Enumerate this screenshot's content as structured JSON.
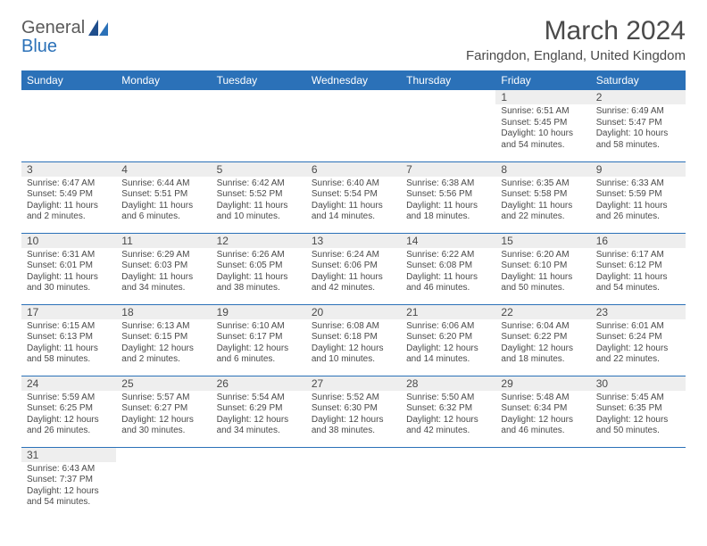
{
  "colors": {
    "header_bg": "#2b71b8",
    "header_text": "#ffffff",
    "day_bar_bg": "#eeeeee",
    "cell_border": "#2b71b8",
    "body_text": "#4a4a4a",
    "page_bg": "#ffffff"
  },
  "typography": {
    "title_fontsize": 30,
    "location_fontsize": 15,
    "header_fontsize": 12,
    "daynum_fontsize": 12,
    "body_fontsize": 10,
    "font_family": "Arial"
  },
  "logo": {
    "text1": "General",
    "text2": "Blue"
  },
  "title": "March 2024",
  "location": "Faringdon, England, United Kingdom",
  "weekdays": [
    "Sunday",
    "Monday",
    "Tuesday",
    "Wednesday",
    "Thursday",
    "Friday",
    "Saturday"
  ],
  "calendar_type": "table",
  "columns": 7,
  "weeks": [
    [
      null,
      null,
      null,
      null,
      null,
      {
        "n": "1",
        "sr": "Sunrise: 6:51 AM",
        "ss": "Sunset: 5:45 PM",
        "d1": "Daylight: 10 hours",
        "d2": "and 54 minutes."
      },
      {
        "n": "2",
        "sr": "Sunrise: 6:49 AM",
        "ss": "Sunset: 5:47 PM",
        "d1": "Daylight: 10 hours",
        "d2": "and 58 minutes."
      }
    ],
    [
      {
        "n": "3",
        "sr": "Sunrise: 6:47 AM",
        "ss": "Sunset: 5:49 PM",
        "d1": "Daylight: 11 hours",
        "d2": "and 2 minutes."
      },
      {
        "n": "4",
        "sr": "Sunrise: 6:44 AM",
        "ss": "Sunset: 5:51 PM",
        "d1": "Daylight: 11 hours",
        "d2": "and 6 minutes."
      },
      {
        "n": "5",
        "sr": "Sunrise: 6:42 AM",
        "ss": "Sunset: 5:52 PM",
        "d1": "Daylight: 11 hours",
        "d2": "and 10 minutes."
      },
      {
        "n": "6",
        "sr": "Sunrise: 6:40 AM",
        "ss": "Sunset: 5:54 PM",
        "d1": "Daylight: 11 hours",
        "d2": "and 14 minutes."
      },
      {
        "n": "7",
        "sr": "Sunrise: 6:38 AM",
        "ss": "Sunset: 5:56 PM",
        "d1": "Daylight: 11 hours",
        "d2": "and 18 minutes."
      },
      {
        "n": "8",
        "sr": "Sunrise: 6:35 AM",
        "ss": "Sunset: 5:58 PM",
        "d1": "Daylight: 11 hours",
        "d2": "and 22 minutes."
      },
      {
        "n": "9",
        "sr": "Sunrise: 6:33 AM",
        "ss": "Sunset: 5:59 PM",
        "d1": "Daylight: 11 hours",
        "d2": "and 26 minutes."
      }
    ],
    [
      {
        "n": "10",
        "sr": "Sunrise: 6:31 AM",
        "ss": "Sunset: 6:01 PM",
        "d1": "Daylight: 11 hours",
        "d2": "and 30 minutes."
      },
      {
        "n": "11",
        "sr": "Sunrise: 6:29 AM",
        "ss": "Sunset: 6:03 PM",
        "d1": "Daylight: 11 hours",
        "d2": "and 34 minutes."
      },
      {
        "n": "12",
        "sr": "Sunrise: 6:26 AM",
        "ss": "Sunset: 6:05 PM",
        "d1": "Daylight: 11 hours",
        "d2": "and 38 minutes."
      },
      {
        "n": "13",
        "sr": "Sunrise: 6:24 AM",
        "ss": "Sunset: 6:06 PM",
        "d1": "Daylight: 11 hours",
        "d2": "and 42 minutes."
      },
      {
        "n": "14",
        "sr": "Sunrise: 6:22 AM",
        "ss": "Sunset: 6:08 PM",
        "d1": "Daylight: 11 hours",
        "d2": "and 46 minutes."
      },
      {
        "n": "15",
        "sr": "Sunrise: 6:20 AM",
        "ss": "Sunset: 6:10 PM",
        "d1": "Daylight: 11 hours",
        "d2": "and 50 minutes."
      },
      {
        "n": "16",
        "sr": "Sunrise: 6:17 AM",
        "ss": "Sunset: 6:12 PM",
        "d1": "Daylight: 11 hours",
        "d2": "and 54 minutes."
      }
    ],
    [
      {
        "n": "17",
        "sr": "Sunrise: 6:15 AM",
        "ss": "Sunset: 6:13 PM",
        "d1": "Daylight: 11 hours",
        "d2": "and 58 minutes."
      },
      {
        "n": "18",
        "sr": "Sunrise: 6:13 AM",
        "ss": "Sunset: 6:15 PM",
        "d1": "Daylight: 12 hours",
        "d2": "and 2 minutes."
      },
      {
        "n": "19",
        "sr": "Sunrise: 6:10 AM",
        "ss": "Sunset: 6:17 PM",
        "d1": "Daylight: 12 hours",
        "d2": "and 6 minutes."
      },
      {
        "n": "20",
        "sr": "Sunrise: 6:08 AM",
        "ss": "Sunset: 6:18 PM",
        "d1": "Daylight: 12 hours",
        "d2": "and 10 minutes."
      },
      {
        "n": "21",
        "sr": "Sunrise: 6:06 AM",
        "ss": "Sunset: 6:20 PM",
        "d1": "Daylight: 12 hours",
        "d2": "and 14 minutes."
      },
      {
        "n": "22",
        "sr": "Sunrise: 6:04 AM",
        "ss": "Sunset: 6:22 PM",
        "d1": "Daylight: 12 hours",
        "d2": "and 18 minutes."
      },
      {
        "n": "23",
        "sr": "Sunrise: 6:01 AM",
        "ss": "Sunset: 6:24 PM",
        "d1": "Daylight: 12 hours",
        "d2": "and 22 minutes."
      }
    ],
    [
      {
        "n": "24",
        "sr": "Sunrise: 5:59 AM",
        "ss": "Sunset: 6:25 PM",
        "d1": "Daylight: 12 hours",
        "d2": "and 26 minutes."
      },
      {
        "n": "25",
        "sr": "Sunrise: 5:57 AM",
        "ss": "Sunset: 6:27 PM",
        "d1": "Daylight: 12 hours",
        "d2": "and 30 minutes."
      },
      {
        "n": "26",
        "sr": "Sunrise: 5:54 AM",
        "ss": "Sunset: 6:29 PM",
        "d1": "Daylight: 12 hours",
        "d2": "and 34 minutes."
      },
      {
        "n": "27",
        "sr": "Sunrise: 5:52 AM",
        "ss": "Sunset: 6:30 PM",
        "d1": "Daylight: 12 hours",
        "d2": "and 38 minutes."
      },
      {
        "n": "28",
        "sr": "Sunrise: 5:50 AM",
        "ss": "Sunset: 6:32 PM",
        "d1": "Daylight: 12 hours",
        "d2": "and 42 minutes."
      },
      {
        "n": "29",
        "sr": "Sunrise: 5:48 AM",
        "ss": "Sunset: 6:34 PM",
        "d1": "Daylight: 12 hours",
        "d2": "and 46 minutes."
      },
      {
        "n": "30",
        "sr": "Sunrise: 5:45 AM",
        "ss": "Sunset: 6:35 PM",
        "d1": "Daylight: 12 hours",
        "d2": "and 50 minutes."
      }
    ],
    [
      {
        "n": "31",
        "sr": "Sunrise: 6:43 AM",
        "ss": "Sunset: 7:37 PM",
        "d1": "Daylight: 12 hours",
        "d2": "and 54 minutes."
      },
      null,
      null,
      null,
      null,
      null,
      null
    ]
  ]
}
